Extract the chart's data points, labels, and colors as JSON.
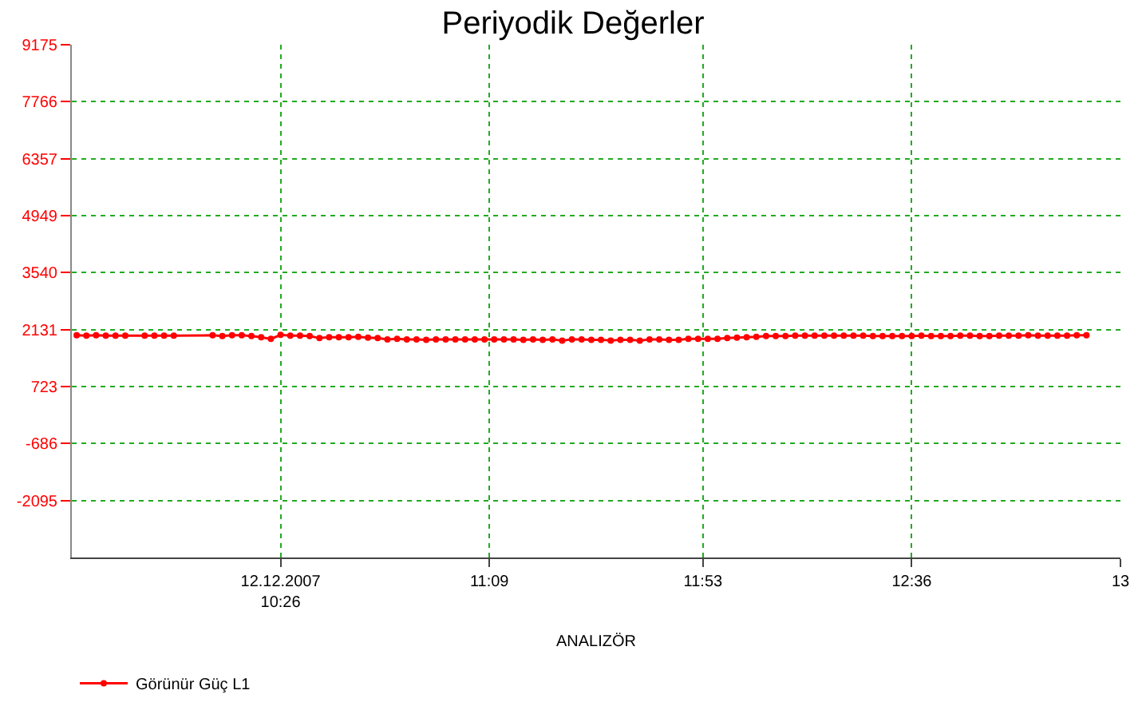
{
  "chart_data": {
    "type": "line",
    "title": "Periyodik Değerler",
    "xlabel": "ANALIZÖR",
    "x": [
      "2007-12-12T09:44",
      "2007-12-12T09:46",
      "2007-12-12T09:48",
      "2007-12-12T09:50",
      "2007-12-12T09:52",
      "2007-12-12T09:54",
      "2007-12-12T09:58",
      "2007-12-12T10:00",
      "2007-12-12T10:02",
      "2007-12-12T10:04",
      "2007-12-12T10:12",
      "2007-12-12T10:14",
      "2007-12-12T10:16",
      "2007-12-12T10:18",
      "2007-12-12T10:20",
      "2007-12-12T10:22",
      "2007-12-12T10:24",
      "2007-12-12T10:26",
      "2007-12-12T10:28",
      "2007-12-12T10:30",
      "2007-12-12T10:32",
      "2007-12-12T10:34",
      "2007-12-12T10:36",
      "2007-12-12T10:38",
      "2007-12-12T10:40",
      "2007-12-12T10:42",
      "2007-12-12T10:44",
      "2007-12-12T10:46",
      "2007-12-12T10:48",
      "2007-12-12T10:50",
      "2007-12-12T10:52",
      "2007-12-12T10:54",
      "2007-12-12T10:56",
      "2007-12-12T10:58",
      "2007-12-12T11:00",
      "2007-12-12T11:02",
      "2007-12-12T11:04",
      "2007-12-12T11:06",
      "2007-12-12T11:08",
      "2007-12-12T11:10",
      "2007-12-12T11:12",
      "2007-12-12T11:14",
      "2007-12-12T11:16",
      "2007-12-12T11:18",
      "2007-12-12T11:20",
      "2007-12-12T11:22",
      "2007-12-12T11:24",
      "2007-12-12T11:26",
      "2007-12-12T11:28",
      "2007-12-12T11:30",
      "2007-12-12T11:32",
      "2007-12-12T11:34",
      "2007-12-12T11:36",
      "2007-12-12T11:38",
      "2007-12-12T11:40",
      "2007-12-12T11:42",
      "2007-12-12T11:44",
      "2007-12-12T11:46",
      "2007-12-12T11:48",
      "2007-12-12T11:50",
      "2007-12-12T11:52",
      "2007-12-12T11:54",
      "2007-12-12T11:56",
      "2007-12-12T11:58",
      "2007-12-12T12:00",
      "2007-12-12T12:02",
      "2007-12-12T12:04",
      "2007-12-12T12:06",
      "2007-12-12T12:08",
      "2007-12-12T12:10",
      "2007-12-12T12:12",
      "2007-12-12T12:14",
      "2007-12-12T12:16",
      "2007-12-12T12:18",
      "2007-12-12T12:20",
      "2007-12-12T12:22",
      "2007-12-12T12:24",
      "2007-12-12T12:26",
      "2007-12-12T12:28",
      "2007-12-12T12:30",
      "2007-12-12T12:32",
      "2007-12-12T12:34",
      "2007-12-12T12:36",
      "2007-12-12T12:38",
      "2007-12-12T12:40",
      "2007-12-12T12:42",
      "2007-12-12T12:44",
      "2007-12-12T12:46",
      "2007-12-12T12:48",
      "2007-12-12T12:50",
      "2007-12-12T12:52",
      "2007-12-12T12:54",
      "2007-12-12T12:56",
      "2007-12-12T12:58",
      "2007-12-12T13:00",
      "2007-12-12T13:02",
      "2007-12-12T13:04",
      "2007-12-12T13:06",
      "2007-12-12T13:08",
      "2007-12-12T13:10",
      "2007-12-12T13:12"
    ],
    "series": [
      {
        "name": "Görünür Güç L1",
        "color": "#ff0000",
        "values": [
          1990,
          1980,
          1990,
          1980,
          1980,
          1980,
          1980,
          1980,
          1980,
          1980,
          1990,
          1970,
          1990,
          1990,
          1970,
          1940,
          1900,
          2000,
          1980,
          1980,
          1970,
          1920,
          1940,
          1940,
          1940,
          1950,
          1930,
          1920,
          1890,
          1900,
          1890,
          1890,
          1880,
          1890,
          1890,
          1890,
          1890,
          1890,
          1890,
          1890,
          1890,
          1890,
          1880,
          1890,
          1880,
          1890,
          1860,
          1890,
          1890,
          1880,
          1880,
          1860,
          1880,
          1880,
          1860,
          1890,
          1890,
          1880,
          1880,
          1900,
          1900,
          1900,
          1900,
          1920,
          1930,
          1940,
          1950,
          1970,
          1970,
          1970,
          1980,
          1980,
          1980,
          1980,
          1980,
          1980,
          1980,
          1980,
          1970,
          1970,
          1970,
          1970,
          1970,
          1980,
          1970,
          1970,
          1970,
          1980,
          1980,
          1970,
          1970,
          1980,
          1980,
          1980,
          1990,
          1980,
          1980,
          1980,
          1980,
          1990,
          1990
        ]
      }
    ],
    "xlim": [
      "2007-12-12T09:43",
      "2007-12-12T13:19"
    ],
    "xticks": [
      {
        "value": "2007-12-12T10:26",
        "label": "12.12.2007\n10:26"
      },
      {
        "value": "2007-12-12T11:09",
        "label": "11:09"
      },
      {
        "value": "2007-12-12T11:53",
        "label": "11:53"
      },
      {
        "value": "2007-12-12T12:36",
        "label": "12:36"
      },
      {
        "value": "2007-12-12T13:19",
        "label": "13"
      }
    ],
    "ylim": [
      -3504,
      9175
    ],
    "yticks": [
      -2095,
      -686,
      723,
      2131,
      3540,
      4949,
      6357,
      7766,
      9175
    ],
    "grid": true,
    "legend": "bottom",
    "marker": "circle",
    "line_style": "solid"
  }
}
